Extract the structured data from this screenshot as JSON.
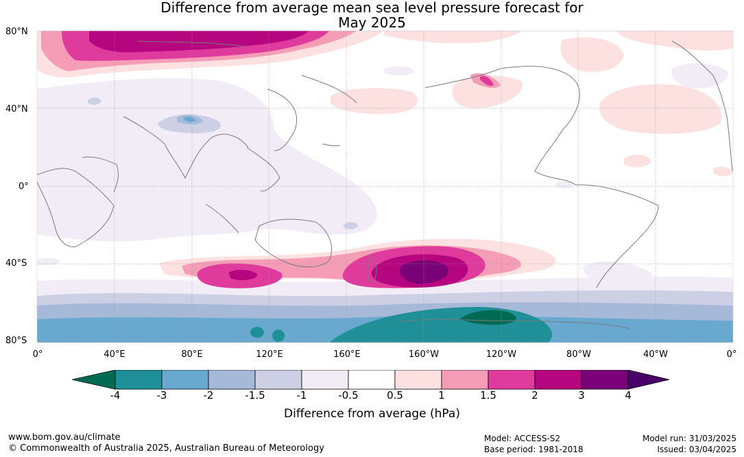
{
  "title": {
    "line1": "Difference from average mean sea level pressure forecast for",
    "line2": "May 2025"
  },
  "map": {
    "lat_labels": [
      "80°N",
      "40°N",
      "0°",
      "40°S",
      "80°S"
    ],
    "lon_labels": [
      "0°",
      "40°E",
      "80°E",
      "120°E",
      "160°E",
      "160°W",
      "120°W",
      "80°W",
      "40°W",
      "0°"
    ]
  },
  "colorbar": {
    "title": "Difference from average (hPa)",
    "tick_labels": [
      "-4",
      "-3",
      "-2",
      "-1.5",
      "-1",
      "-0.5",
      "0.5",
      "1",
      "1.5",
      "2",
      "3",
      "4"
    ],
    "bins": [
      {
        "range": "< -4",
        "color": "#006b52"
      },
      {
        "range": "-4 to -3",
        "color": "#1f8f98"
      },
      {
        "range": "-3 to -2",
        "color": "#69a9cf"
      },
      {
        "range": "-2 to -1.5",
        "color": "#a6b9d9"
      },
      {
        "range": "-1.5 to -1",
        "color": "#cdcfe5"
      },
      {
        "range": "-1 to -0.5",
        "color": "#f1ecf5"
      },
      {
        "range": "-0.5 to 0.5",
        "color": "#ffffff"
      },
      {
        "range": "0.5 to 1",
        "color": "#fde0e0"
      },
      {
        "range": "1 to 1.5",
        "color": "#f59cb6"
      },
      {
        "range": "1.5 to 2",
        "color": "#df3b9d"
      },
      {
        "range": "2 to 3",
        "color": "#b5057f"
      },
      {
        "range": "3 to 4",
        "color": "#7a0177"
      },
      {
        "range": "> 4",
        "color": "#49006a"
      }
    ]
  },
  "footer": {
    "website": "www.bom.gov.au/climate",
    "copyright": "© Commonwealth of Australia 2025, Australian Bureau of Meteorology",
    "model": "Model: ACCESS-S2",
    "base_period": "Base period: 1981-2018",
    "model_run": "Model run: 31/03/2025",
    "issued": "Issued: 03/04/2025"
  }
}
